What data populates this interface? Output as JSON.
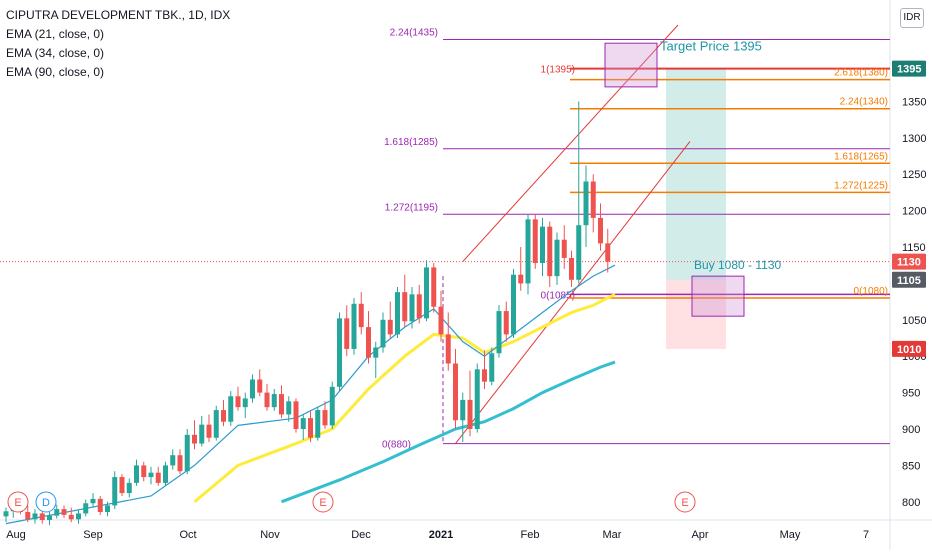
{
  "legend": {
    "title": "CIPUTRA DEVELOPMENT TBK., 1D, IDX",
    "ema1": "EMA (21, close, 0)",
    "ema2": "EMA (34, close, 0)",
    "ema3": "EMA (90, close, 0)"
  },
  "currency_label": "IDR",
  "colors": {
    "up": "#26a69a",
    "down": "#ef5350",
    "ema21": "#2a9bd0",
    "ema34": "#ffeb3b",
    "ema90": "#33bfcf",
    "fib_left": "#9c27b0",
    "fib_right": "#f57c00",
    "target_line": "#e53935",
    "profit_zone": "#b2dfdb",
    "loss_zone": "#ffcdd2",
    "price_tag": "#1e7d73",
    "stop_tag": "#e53935",
    "current_tag": "#ef5350"
  },
  "chart_data": {
    "type": "candlestick",
    "y_range": [
      775,
      1455
    ],
    "y_ticks": [
      800,
      850,
      900,
      950,
      1000,
      1050,
      1100,
      1150,
      1200,
      1250,
      1300,
      1350
    ],
    "x_labels": [
      "Aug",
      "Sep",
      "Oct",
      "Nov",
      "Dec",
      "2021",
      "Feb",
      "Mar",
      "Apr",
      "May",
      "7"
    ],
    "price_tags": [
      {
        "label": "1395",
        "value": 1395,
        "kind": "target"
      },
      {
        "label": "1130",
        "value": 1130,
        "kind": "current"
      },
      {
        "label": "1105",
        "value": 1105,
        "kind": "entry"
      },
      {
        "label": "1010",
        "value": 1010,
        "kind": "stop"
      }
    ],
    "fib_left": [
      {
        "label": "2.24(1435)",
        "value": 1435
      },
      {
        "label": "1.618(1285)",
        "value": 1285
      },
      {
        "label": "1.272(1195)",
        "value": 1195
      },
      {
        "label": "0(880)",
        "value": 880
      }
    ],
    "fib_right": [
      {
        "label": "1(1395)",
        "value": 1395
      },
      {
        "label": "2.618(1380)",
        "value": 1380
      },
      {
        "label": "2.24(1340)",
        "value": 1340
      },
      {
        "label": "1.618(1265)",
        "value": 1265
      },
      {
        "label": "1.272(1225)",
        "value": 1225
      },
      {
        "label": "0(1085)",
        "value": 1085
      },
      {
        "label": "0(1080)",
        "value": 1080
      }
    ],
    "annotations": {
      "target": "Target Price 1395",
      "buy": "Buy 1080 - 1130"
    },
    "earnings_markers": [
      "E",
      "D",
      "E",
      "E"
    ],
    "candles": [
      {
        "o": 780,
        "h": 792,
        "l": 772,
        "c": 787
      },
      {
        "o": 787,
        "h": 811,
        "l": 778,
        "c": 802
      },
      {
        "o": 802,
        "h": 810,
        "l": 783,
        "c": 786
      },
      {
        "o": 786,
        "h": 795,
        "l": 772,
        "c": 776
      },
      {
        "o": 776,
        "h": 790,
        "l": 770,
        "c": 784
      },
      {
        "o": 784,
        "h": 790,
        "l": 770,
        "c": 775
      },
      {
        "o": 775,
        "h": 786,
        "l": 768,
        "c": 781
      },
      {
        "o": 781,
        "h": 796,
        "l": 777,
        "c": 790
      },
      {
        "o": 790,
        "h": 795,
        "l": 778,
        "c": 782
      },
      {
        "o": 782,
        "h": 792,
        "l": 772,
        "c": 776
      },
      {
        "o": 776,
        "h": 788,
        "l": 770,
        "c": 784
      },
      {
        "o": 784,
        "h": 803,
        "l": 780,
        "c": 798
      },
      {
        "o": 798,
        "h": 812,
        "l": 792,
        "c": 804
      },
      {
        "o": 804,
        "h": 808,
        "l": 782,
        "c": 786
      },
      {
        "o": 786,
        "h": 800,
        "l": 780,
        "c": 795
      },
      {
        "o": 795,
        "h": 842,
        "l": 790,
        "c": 834
      },
      {
        "o": 834,
        "h": 838,
        "l": 808,
        "c": 812
      },
      {
        "o": 812,
        "h": 832,
        "l": 806,
        "c": 826
      },
      {
        "o": 826,
        "h": 858,
        "l": 822,
        "c": 850
      },
      {
        "o": 850,
        "h": 855,
        "l": 828,
        "c": 834
      },
      {
        "o": 834,
        "h": 848,
        "l": 824,
        "c": 840
      },
      {
        "o": 840,
        "h": 848,
        "l": 822,
        "c": 826
      },
      {
        "o": 826,
        "h": 855,
        "l": 822,
        "c": 850
      },
      {
        "o": 850,
        "h": 872,
        "l": 844,
        "c": 864
      },
      {
        "o": 864,
        "h": 872,
        "l": 838,
        "c": 842
      },
      {
        "o": 842,
        "h": 900,
        "l": 838,
        "c": 892
      },
      {
        "o": 892,
        "h": 912,
        "l": 872,
        "c": 880
      },
      {
        "o": 880,
        "h": 918,
        "l": 876,
        "c": 906
      },
      {
        "o": 906,
        "h": 920,
        "l": 882,
        "c": 888
      },
      {
        "o": 888,
        "h": 932,
        "l": 884,
        "c": 926
      },
      {
        "o": 926,
        "h": 940,
        "l": 904,
        "c": 910
      },
      {
        "o": 910,
        "h": 952,
        "l": 904,
        "c": 945
      },
      {
        "o": 945,
        "h": 958,
        "l": 925,
        "c": 930
      },
      {
        "o": 930,
        "h": 950,
        "l": 915,
        "c": 942
      },
      {
        "o": 942,
        "h": 975,
        "l": 936,
        "c": 968
      },
      {
        "o": 968,
        "h": 982,
        "l": 945,
        "c": 950
      },
      {
        "o": 950,
        "h": 962,
        "l": 925,
        "c": 930
      },
      {
        "o": 930,
        "h": 955,
        "l": 925,
        "c": 948
      },
      {
        "o": 948,
        "h": 960,
        "l": 915,
        "c": 920
      },
      {
        "o": 920,
        "h": 945,
        "l": 910,
        "c": 938
      },
      {
        "o": 938,
        "h": 942,
        "l": 895,
        "c": 900
      },
      {
        "o": 900,
        "h": 920,
        "l": 885,
        "c": 915
      },
      {
        "o": 915,
        "h": 925,
        "l": 882,
        "c": 888
      },
      {
        "o": 888,
        "h": 930,
        "l": 884,
        "c": 926
      },
      {
        "o": 926,
        "h": 938,
        "l": 900,
        "c": 905
      },
      {
        "o": 905,
        "h": 965,
        "l": 900,
        "c": 958
      },
      {
        "o": 958,
        "h": 1060,
        "l": 952,
        "c": 1052
      },
      {
        "o": 1052,
        "h": 1070,
        "l": 1000,
        "c": 1010
      },
      {
        "o": 1010,
        "h": 1080,
        "l": 1002,
        "c": 1072
      },
      {
        "o": 1072,
        "h": 1088,
        "l": 1030,
        "c": 1040
      },
      {
        "o": 1040,
        "h": 1062,
        "l": 990,
        "c": 998
      },
      {
        "o": 998,
        "h": 1020,
        "l": 970,
        "c": 1012
      },
      {
        "o": 1012,
        "h": 1060,
        "l": 1005,
        "c": 1050
      },
      {
        "o": 1050,
        "h": 1075,
        "l": 1025,
        "c": 1030
      },
      {
        "o": 1030,
        "h": 1095,
        "l": 1025,
        "c": 1088
      },
      {
        "o": 1088,
        "h": 1112,
        "l": 1040,
        "c": 1048
      },
      {
        "o": 1048,
        "h": 1095,
        "l": 1038,
        "c": 1085
      },
      {
        "o": 1085,
        "h": 1098,
        "l": 1045,
        "c": 1052
      },
      {
        "o": 1052,
        "h": 1132,
        "l": 1048,
        "c": 1122
      },
      {
        "o": 1122,
        "h": 1128,
        "l": 1060,
        "c": 1068
      },
      {
        "o": 1068,
        "h": 1090,
        "l": 1020,
        "c": 1030
      },
      {
        "o": 1030,
        "h": 1060,
        "l": 980,
        "c": 990
      },
      {
        "o": 990,
        "h": 1010,
        "l": 900,
        "c": 912
      },
      {
        "o": 912,
        "h": 950,
        "l": 882,
        "c": 940
      },
      {
        "o": 940,
        "h": 980,
        "l": 890,
        "c": 900
      },
      {
        "o": 900,
        "h": 990,
        "l": 895,
        "c": 982
      },
      {
        "o": 982,
        "h": 1008,
        "l": 955,
        "c": 965
      },
      {
        "o": 965,
        "h": 1012,
        "l": 960,
        "c": 1004
      },
      {
        "o": 1004,
        "h": 1070,
        "l": 998,
        "c": 1062
      },
      {
        "o": 1062,
        "h": 1075,
        "l": 1020,
        "c": 1030
      },
      {
        "o": 1030,
        "h": 1120,
        "l": 1025,
        "c": 1112
      },
      {
        "o": 1112,
        "h": 1150,
        "l": 1090,
        "c": 1100
      },
      {
        "o": 1100,
        "h": 1195,
        "l": 1085,
        "c": 1188
      },
      {
        "o": 1188,
        "h": 1195,
        "l": 1120,
        "c": 1128
      },
      {
        "o": 1128,
        "h": 1190,
        "l": 1110,
        "c": 1178
      },
      {
        "o": 1178,
        "h": 1185,
        "l": 1095,
        "c": 1110
      },
      {
        "o": 1110,
        "h": 1170,
        "l": 1098,
        "c": 1160
      },
      {
        "o": 1160,
        "h": 1180,
        "l": 1120,
        "c": 1135
      },
      {
        "o": 1135,
        "h": 1145,
        "l": 1095,
        "c": 1105
      },
      {
        "o": 1105,
        "h": 1350,
        "l": 1100,
        "c": 1180
      },
      {
        "o": 1180,
        "h": 1262,
        "l": 1150,
        "c": 1240
      },
      {
        "o": 1240,
        "h": 1250,
        "l": 1170,
        "c": 1190
      },
      {
        "o": 1190,
        "h": 1210,
        "l": 1145,
        "c": 1155
      },
      {
        "o": 1155,
        "h": 1175,
        "l": 1115,
        "c": 1130
      }
    ],
    "ema21": [
      [
        0,
        770
      ],
      [
        20,
        808
      ],
      [
        26,
        850
      ],
      [
        32,
        905
      ],
      [
        40,
        915
      ],
      [
        45,
        940
      ],
      [
        50,
        1000
      ],
      [
        55,
        1040
      ],
      [
        59,
        1065
      ],
      [
        63,
        1020
      ],
      [
        66,
        1000
      ],
      [
        70,
        1030
      ],
      [
        74,
        1060
      ],
      [
        78,
        1090
      ],
      [
        81,
        1110
      ],
      [
        84,
        1125
      ]
    ],
    "ema34": [
      [
        26,
        800
      ],
      [
        32,
        850
      ],
      [
        40,
        880
      ],
      [
        45,
        900
      ],
      [
        50,
        955
      ],
      [
        55,
        1000
      ],
      [
        59,
        1030
      ],
      [
        63,
        1025
      ],
      [
        66,
        1005
      ],
      [
        70,
        1020
      ],
      [
        74,
        1040
      ],
      [
        78,
        1060
      ],
      [
        81,
        1070
      ],
      [
        84,
        1085
      ]
    ],
    "ema90": [
      [
        38,
        800
      ],
      [
        46,
        830
      ],
      [
        52,
        855
      ],
      [
        57,
        878
      ],
      [
        62,
        900
      ],
      [
        66,
        910
      ],
      [
        70,
        928
      ],
      [
        74,
        950
      ],
      [
        78,
        968
      ],
      [
        82,
        985
      ],
      [
        84,
        992
      ]
    ]
  }
}
